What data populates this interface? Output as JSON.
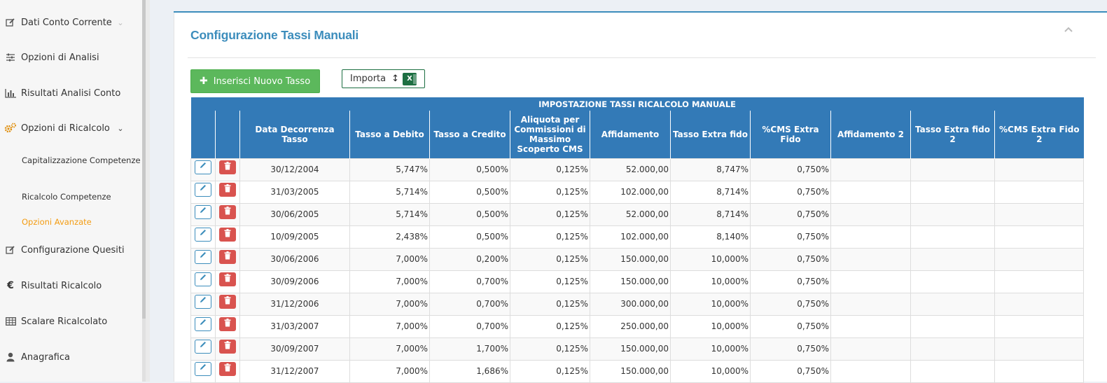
{
  "sidebar": {
    "items": [
      {
        "label": "Dati Conto Corrente",
        "icon": "edit-icon"
      },
      {
        "label": "Opzioni di Analisi",
        "icon": "sliders-icon"
      },
      {
        "label": "Risultati Analisi Conto",
        "icon": "bar-chart-icon"
      },
      {
        "label": "Opzioni di Ricalcolo",
        "icon": "gears-icon"
      },
      {
        "label": "Configurazione Quesiti",
        "icon": "edit-icon"
      },
      {
        "label": "Risultati Ricalcolo",
        "icon": "euro-icon"
      },
      {
        "label": "Scalare Ricalcolato",
        "icon": "table-icon"
      },
      {
        "label": "Anagrafica",
        "icon": "user-icon"
      }
    ],
    "subitems": [
      {
        "label": "Capitalizzazione Competenze"
      },
      {
        "label": "Ricalcolo Competenze"
      },
      {
        "label": "Opzioni Avanzate"
      }
    ]
  },
  "main": {
    "title": "Configurazione Tassi Manuali",
    "add_button": "Inserisci Nuovo Tasso",
    "import_button": "Importa",
    "excel_label": "X"
  },
  "table": {
    "caption": "IMPOSTAZIONE TASSI RICALCOLO MANUALE",
    "headers": [
      "Data Decorrenza Tasso",
      "Tasso a Debito",
      "Tasso a Credito",
      "Aliquota per Commissioni di Massimo Scoperto CMS",
      "Affidamento",
      "Tasso Extra fido",
      "%CMS Extra Fido",
      "Affidamento 2",
      "Tasso Extra fido 2",
      "%CMS Extra Fido 2"
    ],
    "rows": [
      [
        "30/12/2004",
        "5,747%",
        "0,500%",
        "0,125%",
        "52.000,00",
        "8,747%",
        "0,750%",
        "",
        "",
        ""
      ],
      [
        "31/03/2005",
        "5,714%",
        "0,500%",
        "0,125%",
        "102.000,00",
        "8,714%",
        "0,750%",
        "",
        "",
        ""
      ],
      [
        "30/06/2005",
        "5,714%",
        "0,500%",
        "0,125%",
        "52.000,00",
        "8,714%",
        "0,750%",
        "",
        "",
        ""
      ],
      [
        "10/09/2005",
        "2,438%",
        "0,500%",
        "0,125%",
        "102.000,00",
        "8,140%",
        "0,750%",
        "",
        "",
        ""
      ],
      [
        "30/06/2006",
        "7,000%",
        "0,200%",
        "0,125%",
        "150.000,00",
        "10,000%",
        "0,750%",
        "",
        "",
        ""
      ],
      [
        "30/09/2006",
        "7,000%",
        "0,700%",
        "0,125%",
        "150.000,00",
        "10,000%",
        "0,750%",
        "",
        "",
        ""
      ],
      [
        "31/12/2006",
        "7,000%",
        "0,700%",
        "0,125%",
        "300.000,00",
        "10,000%",
        "0,750%",
        "",
        "",
        ""
      ],
      [
        "31/03/2007",
        "7,000%",
        "0,700%",
        "0,125%",
        "250.000,00",
        "10,000%",
        "0,750%",
        "",
        "",
        ""
      ],
      [
        "30/09/2007",
        "7,000%",
        "1,700%",
        "0,125%",
        "150.000,00",
        "10,000%",
        "0,750%",
        "",
        "",
        ""
      ],
      [
        "31/12/2007",
        "7,000%",
        "1,686%",
        "0,125%",
        "150.000,00",
        "10,000%",
        "0,750%",
        "",
        "",
        ""
      ]
    ]
  },
  "colors": {
    "primary": "#3c8dbc",
    "header_blue": "#337ab7",
    "success": "#5cb85c",
    "danger": "#d9534f",
    "active_orange": "#f39c12",
    "excel_green": "#1d6f42"
  }
}
